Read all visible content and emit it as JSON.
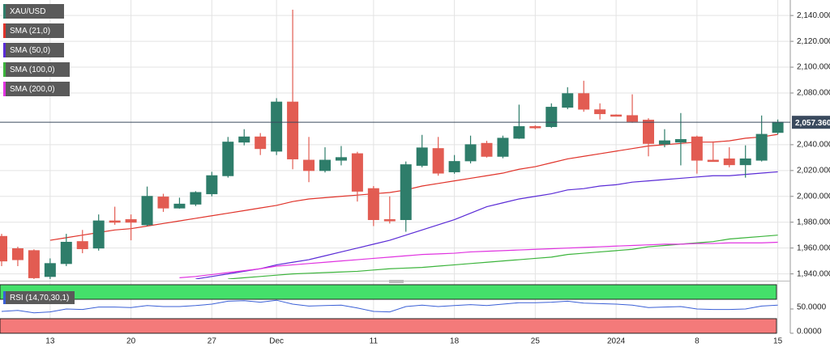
{
  "chart_data": [
    {
      "type": "candlestick",
      "name": "XAU/USD",
      "categories": [
        null,
        null,
        null,
        "13",
        null,
        null,
        null,
        null,
        "20",
        null,
        null,
        null,
        null,
        "27",
        null,
        null,
        null,
        "Dec",
        null,
        null,
        null,
        null,
        null,
        "11",
        null,
        null,
        null,
        null,
        "18",
        null,
        null,
        null,
        null,
        "25",
        null,
        null,
        null,
        null,
        "2024",
        null,
        null,
        null,
        null,
        "8",
        null,
        null,
        null,
        null,
        "15"
      ],
      "open": [
        1969,
        1959.5,
        1958,
        1938,
        1948,
        1965,
        1960,
        1981,
        1982,
        1978,
        1999.5,
        1991,
        1994,
        2002,
        2016,
        2042,
        2046,
        2035,
        2073,
        2028,
        2020,
        2028,
        2033,
        2006,
        1982,
        1982,
        2024,
        2037,
        2019,
        2027.5,
        2041,
        2031,
        2045,
        2054,
        2054,
        2069,
        2079.5,
        2067,
        2063,
        2062.5,
        2059,
        2040.5,
        2042,
        2046,
        2028,
        2029,
        2024.5,
        2028,
        2049.5
      ],
      "high": [
        1971,
        1961,
        1959,
        1952,
        1971,
        1974,
        1986,
        1992,
        1986,
        2007.6,
        2002,
        1999,
        2004,
        2019,
        2046,
        2052,
        2049,
        2076,
        2144.5,
        2046,
        2038,
        2039,
        2034.5,
        2008,
        2000,
        2027,
        2047.6,
        2046,
        2032,
        2047,
        2043,
        2047,
        2071,
        2055,
        2072,
        2084.5,
        2089.5,
        2072,
        2063.5,
        2079,
        2060.5,
        2052,
        2064.5,
        2047,
        2042.6,
        2038,
        2039.5,
        2062.6,
        2059.5
      ],
      "low": [
        1946,
        1946,
        1936,
        1936,
        1946,
        1956,
        1958,
        1978,
        1966,
        1977,
        1988,
        1990.5,
        1992.5,
        2000,
        2014.5,
        2039.5,
        2032,
        2032,
        2021,
        2011,
        2018.5,
        2024,
        1996,
        1977,
        1979,
        1972.6,
        2022.5,
        2016,
        2017.5,
        2025.5,
        2030,
        2029.5,
        2044.5,
        2052,
        2053,
        2067.5,
        2065.5,
        2059.5,
        2062,
        2057,
        2031,
        2038,
        2024,
        2017.6,
        2027,
        2022.5,
        2014.5,
        2027,
        2048
      ],
      "close": [
        1950,
        1951,
        1937,
        1948,
        1964.5,
        1959.5,
        1981,
        1980,
        1980,
        2000,
        1991,
        1994,
        2003,
        2016,
        2042,
        2046,
        2037,
        2073,
        2029,
        2020,
        2028,
        2030,
        2004,
        1982,
        1981.5,
        2024.5,
        2037.5,
        2018,
        2027,
        2040,
        2031,
        2045,
        2054,
        2053.5,
        2069,
        2079.5,
        2067.5,
        2064,
        2062.5,
        2058,
        2041,
        2043,
        2044,
        2028,
        2027,
        2024.5,
        2029,
        2048,
        2057.36
      ],
      "up_color": "#2e7d6a",
      "down_color": "#e25c52",
      "current_price": {
        "value": 2057.36,
        "label": "2,057.360"
      },
      "current_price_color": "#3a4a5e",
      "ylim": [
        1936,
        2152
      ],
      "yticks": [
        {
          "value": 1940,
          "label": "1,940.000"
        },
        {
          "value": 1960,
          "label": "1,960.000"
        },
        {
          "value": 1980,
          "label": "1,980.000"
        },
        {
          "value": 2000,
          "label": "2,000.000"
        },
        {
          "value": 2020,
          "label": "2,020.000"
        },
        {
          "value": 2040,
          "label": "2,040.000"
        },
        {
          "value": 2080,
          "label": "2,080.000"
        },
        {
          "value": 2100,
          "label": "2,100.000"
        },
        {
          "value": 2120,
          "label": "2,120.000"
        },
        {
          "value": 2140,
          "label": "2,140.000"
        }
      ],
      "grid": true,
      "series": [
        {
          "name": "SMA (21,0)",
          "color": "#e0332a",
          "values": [
            null,
            null,
            null,
            1966,
            1968,
            1970,
            1972,
            1974,
            1975,
            1977,
            1979,
            1981,
            1983,
            1985,
            1987,
            1989,
            1991,
            1993,
            1996,
            1998,
            1999,
            2000,
            2001,
            2002,
            2003,
            2005,
            2008,
            2010,
            2012,
            2014,
            2016,
            2018,
            2021,
            2023,
            2026,
            2029,
            2031,
            2033,
            2035,
            2037,
            2039,
            2040,
            2041,
            2042,
            2042,
            2043,
            2045,
            2046,
            2048
          ]
        },
        {
          "name": "SMA (50,0)",
          "color": "#5a2bd6",
          "values": [
            null,
            null,
            null,
            null,
            null,
            null,
            null,
            null,
            null,
            null,
            null,
            null,
            1936,
            1938,
            1940,
            1942,
            1944,
            1947,
            1949,
            1951,
            1954,
            1957,
            1960,
            1963,
            1966,
            1970,
            1974,
            1978,
            1982,
            1987,
            1992,
            1995,
            1998,
            2000,
            2002,
            2005,
            2006,
            2008,
            2009,
            2011,
            2012,
            2013,
            2014,
            2015,
            2016,
            2016,
            2017,
            2018,
            2019
          ]
        },
        {
          "name": "SMA (100,0)",
          "color": "#3cb43c",
          "values": [
            null,
            null,
            null,
            null,
            null,
            null,
            null,
            null,
            null,
            null,
            null,
            null,
            null,
            null,
            1936,
            1937,
            1938,
            1939,
            1940,
            1940.5,
            1941,
            1941.5,
            1942,
            1943,
            1944,
            1944.5,
            1945,
            1946,
            1947,
            1948,
            1949,
            1950,
            1951,
            1952,
            1953,
            1955,
            1956,
            1957,
            1958,
            1959,
            1961,
            1962,
            1963,
            1964,
            1965,
            1967,
            1968,
            1969,
            1970
          ]
        },
        {
          "name": "SMA (200,0)",
          "color": "#e033e0",
          "values": [
            null,
            null,
            null,
            null,
            null,
            null,
            null,
            null,
            null,
            null,
            null,
            1937,
            1938,
            1939.5,
            1941,
            1942.5,
            1944,
            1946,
            1947,
            1948,
            1949,
            1950,
            1951,
            1952,
            1953,
            1954,
            1955,
            1955.5,
            1956,
            1957,
            1957.5,
            1958,
            1958.5,
            1959,
            1959.5,
            1960,
            1960.5,
            1961,
            1961.5,
            1962,
            1962.5,
            1963,
            1963,
            1963.5,
            1963.5,
            1964,
            1964,
            1964,
            1964.5
          ]
        }
      ]
    },
    {
      "type": "line",
      "name": "RSI (14,70,30,1)",
      "color": "#3a5fd6",
      "values": [
        45,
        47,
        42,
        44,
        50,
        49,
        54,
        54,
        53,
        57,
        55,
        55,
        57,
        60,
        66,
        67,
        64,
        68,
        60,
        56,
        57,
        58,
        52,
        45,
        44,
        55,
        58,
        55,
        57,
        59,
        57,
        60,
        63,
        63,
        64,
        66,
        62,
        61,
        60,
        58,
        53,
        54,
        55,
        50,
        49,
        49,
        50,
        56,
        58
      ],
      "ylim": [
        0,
        100
      ],
      "yticks": [
        {
          "value": 50,
          "label": "50.0000"
        },
        {
          "value": 0,
          "label": "0.0000"
        }
      ],
      "overbought": 70,
      "oversold": 30,
      "overbought_color": "#44e06a",
      "oversold_color": "#f47a7a"
    }
  ]
}
